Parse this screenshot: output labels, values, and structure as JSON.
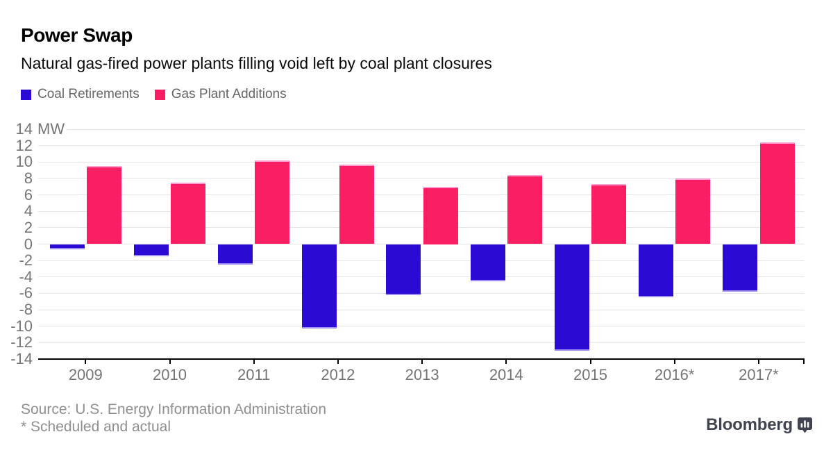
{
  "header": {
    "title": "Power Swap",
    "subtitle": "Natural gas-fired power plants filling void left by coal plant closures"
  },
  "legend": {
    "items": [
      {
        "label": "Coal Retirements",
        "color": "#2b0ad3"
      },
      {
        "label": "Gas Plant Additions",
        "color": "#fa1f62"
      }
    ]
  },
  "chart_data": {
    "type": "bar",
    "categories": [
      "2009",
      "2010",
      "2011",
      "2012",
      "2013",
      "2014",
      "2015",
      "2016*",
      "2017*"
    ],
    "series": [
      {
        "name": "Coal Retirements",
        "color": "#2b0ad3",
        "edge_color": "#a38ff0",
        "values": [
          -0.6,
          -1.5,
          -2.5,
          -10.3,
          -6.2,
          -4.5,
          -13.0,
          -6.5,
          -5.8
        ]
      },
      {
        "name": "Gas Plant Additions",
        "color": "#fa1f62",
        "edge_color": "#fb9fd2",
        "values": [
          9.5,
          7.5,
          10.2,
          9.7,
          7.0,
          8.4,
          7.3,
          8.0,
          12.4
        ]
      }
    ],
    "title": "Power Swap",
    "subtitle": "Natural gas-fired power plants filling void left by coal plant closures",
    "xlabel": "",
    "ylabel": "MW",
    "ylim": [
      -14,
      14
    ],
    "yticks": [
      14,
      12,
      10,
      8,
      6,
      4,
      2,
      0,
      -2,
      -4,
      -6,
      -8,
      -10,
      -12,
      -14
    ],
    "grid": true,
    "legend_position": "top-left",
    "colors": {
      "gridline": "#e6e5ea",
      "axis": "#000000",
      "tick_label": "#757575"
    }
  },
  "footer": {
    "source": "Source: U.S. Energy Information Administration",
    "note": "* Scheduled and actual",
    "brand": "Bloomberg"
  }
}
